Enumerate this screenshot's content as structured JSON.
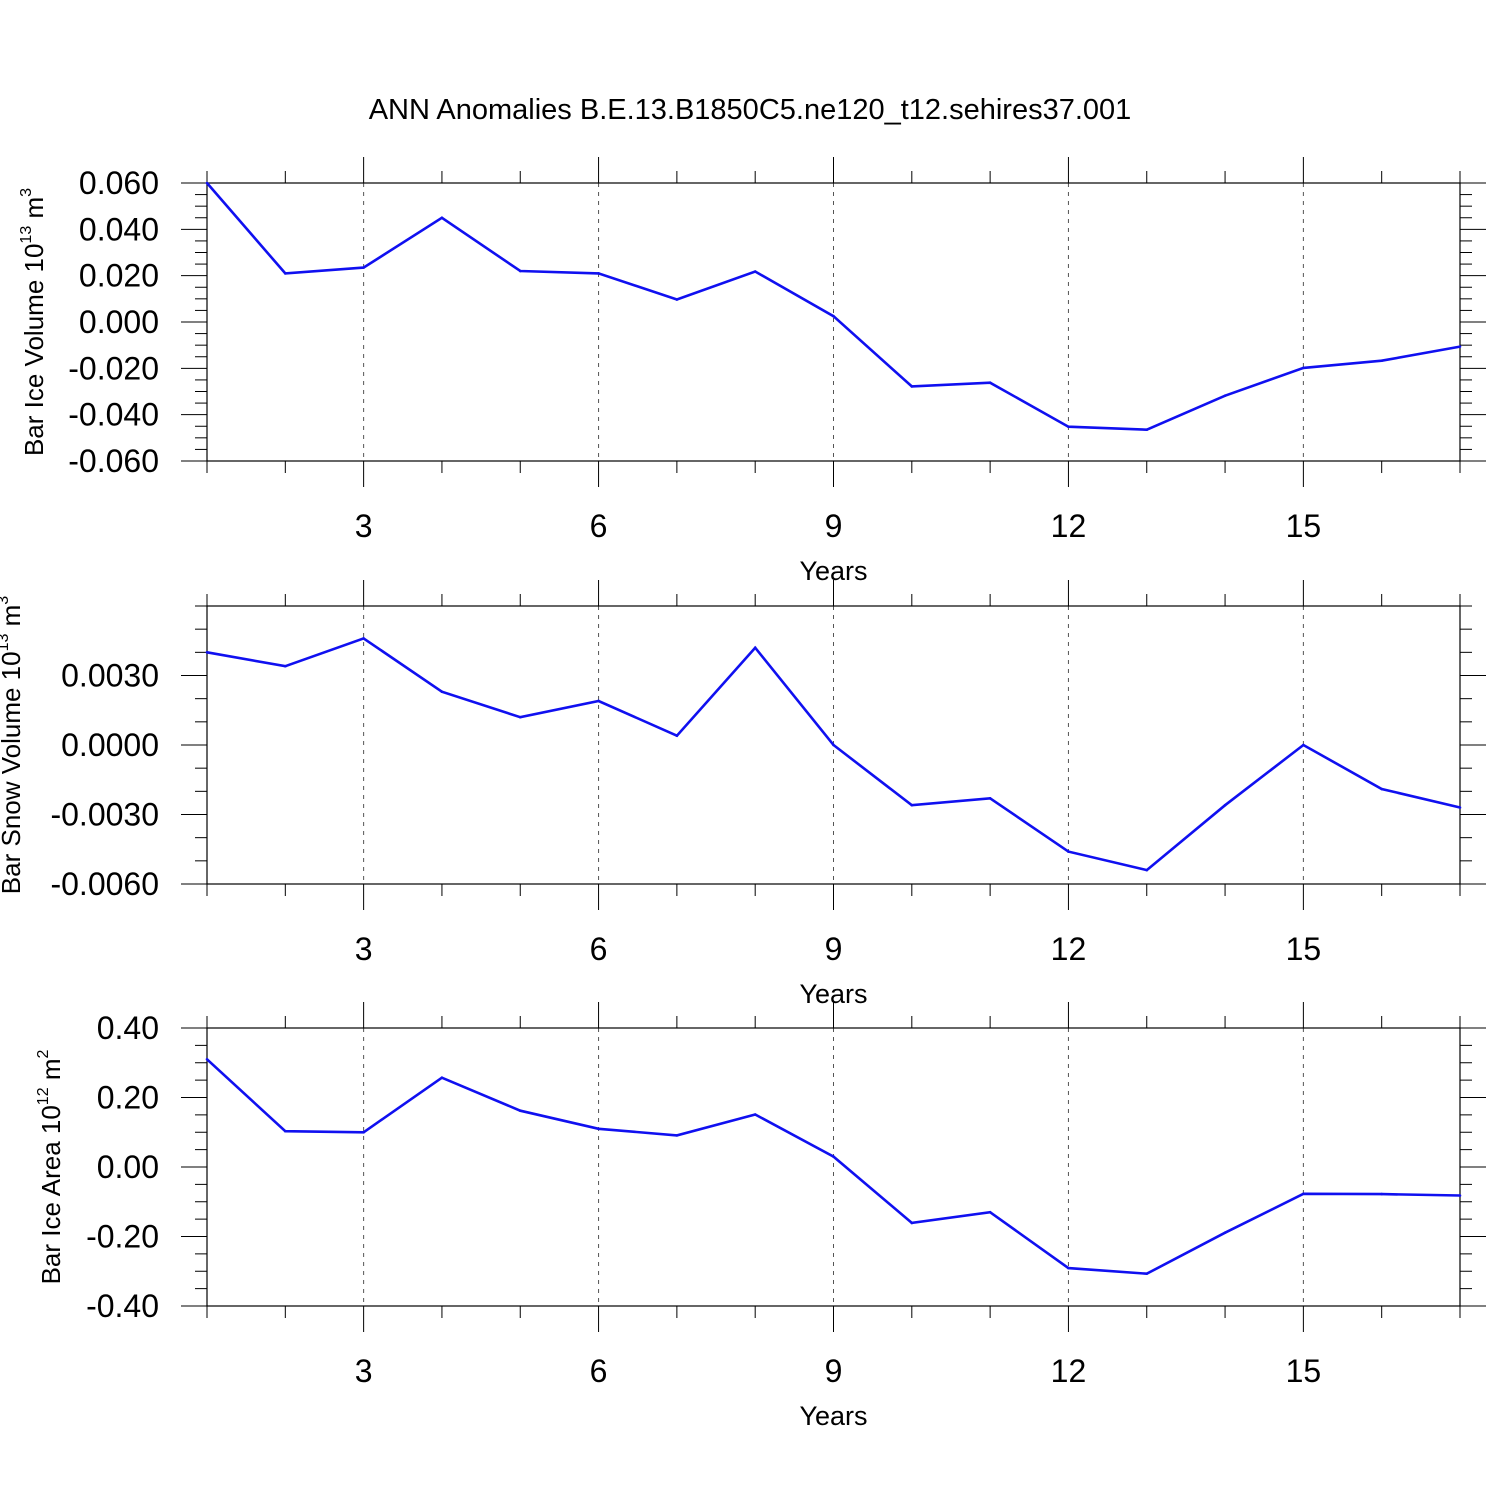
{
  "figure": {
    "title": "ANN Anomalies B.E.13.B1850C5.ne120_t12.sehires37.001",
    "line_color": "#1010f0",
    "grid_color": "#555555"
  },
  "chart_data": [
    {
      "type": "line",
      "title": "",
      "xlabel": "Years",
      "ylabel_parts": [
        "Bar Ice Volume 10",
        "13",
        " m",
        "3"
      ],
      "xlim": [
        1,
        17
      ],
      "ylim": [
        -0.06,
        0.06
      ],
      "x_ticks": [
        3,
        6,
        9,
        12,
        15
      ],
      "x_tick_labels": [
        "3",
        "6",
        "9",
        "12",
        "15"
      ],
      "y_ticks": [
        -0.06,
        -0.04,
        -0.02,
        0.0,
        0.02,
        0.04,
        0.06
      ],
      "y_tick_labels": [
        "-0.060",
        "-0.040",
        "-0.020",
        "0.000",
        "0.020",
        "0.040",
        "0.060"
      ],
      "y_minor_step": 0.005,
      "grid": "vertical dashed at major x ticks",
      "series": [
        {
          "x": [
            1,
            2,
            3,
            4,
            5,
            6,
            7,
            8,
            9,
            10,
            11,
            12,
            13,
            14,
            15,
            16,
            17
          ],
          "values": [
            0.06,
            0.021,
            0.0235,
            0.045,
            0.022,
            0.021,
            0.0097,
            0.0218,
            0.0025,
            -0.0278,
            -0.0262,
            -0.0452,
            -0.0465,
            -0.0318,
            -0.0198,
            -0.0167,
            -0.0106
          ]
        }
      ]
    },
    {
      "type": "line",
      "title": "",
      "xlabel": "Years",
      "ylabel_parts": [
        "Bar Snow Volume 10",
        "13",
        " m",
        "3"
      ],
      "xlim": [
        1,
        17
      ],
      "ylim": [
        -0.006,
        0.006
      ],
      "x_ticks": [
        3,
        6,
        9,
        12,
        15
      ],
      "x_tick_labels": [
        "3",
        "6",
        "9",
        "12",
        "15"
      ],
      "y_ticks": [
        -0.006,
        -0.003,
        0.0,
        0.003
      ],
      "y_tick_labels": [
        "-0.0060",
        "-0.0030",
        "0.0000",
        "0.0030"
      ],
      "y_minor_step": 0.001,
      "grid": "vertical dashed at major x ticks",
      "series": [
        {
          "x": [
            1,
            2,
            3,
            4,
            5,
            6,
            7,
            8,
            9,
            10,
            11,
            12,
            13,
            14,
            15,
            16,
            17
          ],
          "values": [
            0.004,
            0.0034,
            0.0046,
            0.0023,
            0.0012,
            0.0019,
            0.0004,
            0.0042,
            0.0,
            -0.0026,
            -0.0023,
            -0.0046,
            -0.0054,
            -0.0026,
            0.0,
            -0.0019,
            -0.0027
          ]
        }
      ]
    },
    {
      "type": "line",
      "title": "",
      "xlabel": "Years",
      "ylabel_parts": [
        "Bar Ice Area 10",
        "12",
        " m",
        "2"
      ],
      "xlim": [
        1,
        17
      ],
      "ylim": [
        -0.4,
        0.4
      ],
      "x_ticks": [
        3,
        6,
        9,
        12,
        15
      ],
      "x_tick_labels": [
        "3",
        "6",
        "9",
        "12",
        "15"
      ],
      "y_ticks": [
        -0.4,
        -0.2,
        0.0,
        0.2,
        0.4
      ],
      "y_tick_labels": [
        "-0.40",
        "-0.20",
        "0.00",
        "0.20",
        "0.40"
      ],
      "y_minor_step": 0.05,
      "grid": "vertical dashed at major x ticks",
      "series": [
        {
          "x": [
            1,
            2,
            3,
            4,
            5,
            6,
            7,
            8,
            9,
            10,
            11,
            12,
            13,
            14,
            15,
            16,
            17
          ],
          "values": [
            0.31,
            0.103,
            0.1,
            0.257,
            0.162,
            0.11,
            0.091,
            0.151,
            0.03,
            -0.161,
            -0.13,
            -0.291,
            -0.307,
            -0.189,
            -0.077,
            -0.078,
            -0.082
          ]
        }
      ]
    }
  ]
}
